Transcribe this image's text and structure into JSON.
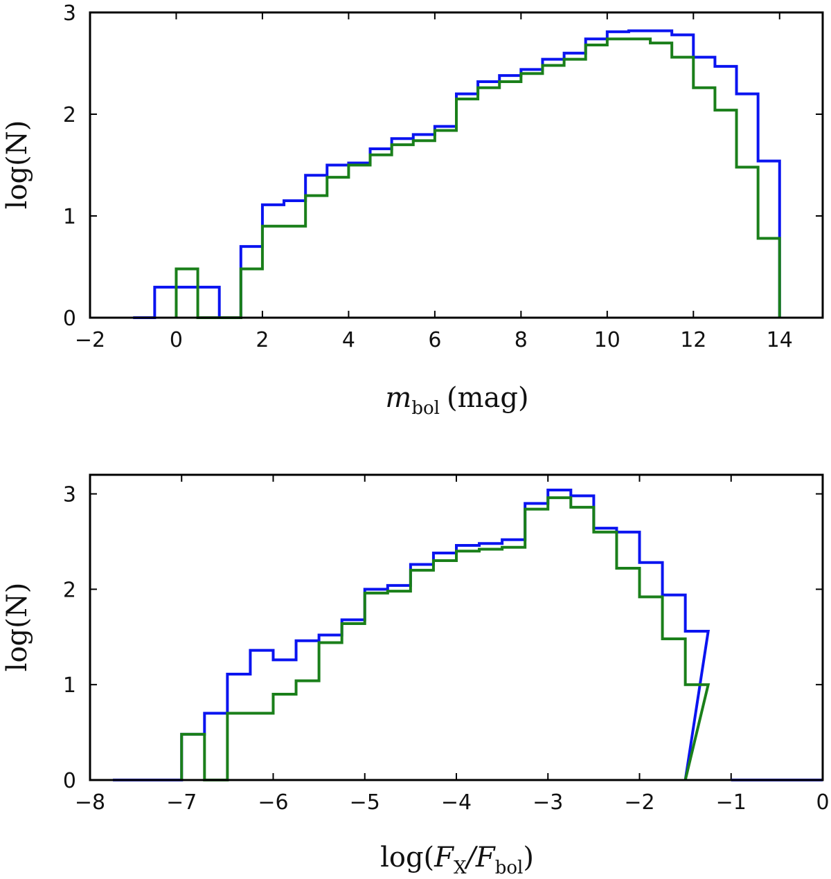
{
  "colors": {
    "series_a": "#0a14f0",
    "series_b": "#1a7f1a"
  },
  "chart_data": [
    {
      "type": "histogram",
      "xlabel": {
        "main": "m",
        "sub": "bol",
        "unit": "(mag)"
      },
      "ylabel": "log(N)",
      "xlim": [
        -2,
        15
      ],
      "ylim": [
        0,
        3
      ],
      "xticks": [
        -2,
        0,
        2,
        4,
        6,
        8,
        10,
        12,
        14
      ],
      "xtick_labels": [
        "−2",
        "0",
        "2",
        "4",
        "6",
        "8",
        "10",
        "12",
        "14"
      ],
      "yticks": [
        0,
        1,
        2,
        3
      ],
      "ytick_labels": [
        "0",
        "1",
        "2",
        "3"
      ],
      "bin_width": 0.5,
      "series": [
        {
          "name": "blue",
          "bins": [
            [
              -1.0,
              0.0
            ],
            [
              -0.5,
              0.3
            ],
            [
              0.0,
              0.3
            ],
            [
              0.5,
              0.3
            ],
            [
              1.0,
              0.0
            ],
            [
              1.5,
              0.7
            ],
            [
              2.0,
              1.11
            ],
            [
              2.5,
              1.15
            ],
            [
              3.0,
              1.4
            ],
            [
              3.5,
              1.5
            ],
            [
              4.0,
              1.52
            ],
            [
              4.5,
              1.66
            ],
            [
              5.0,
              1.76
            ],
            [
              5.5,
              1.8
            ],
            [
              6.0,
              1.88
            ],
            [
              6.5,
              2.2
            ],
            [
              7.0,
              2.32
            ],
            [
              7.5,
              2.38
            ],
            [
              8.0,
              2.44
            ],
            [
              8.5,
              2.54
            ],
            [
              9.0,
              2.6
            ],
            [
              9.5,
              2.74
            ],
            [
              10.0,
              2.81
            ],
            [
              10.5,
              2.82
            ],
            [
              11.0,
              2.82
            ],
            [
              11.5,
              2.78
            ],
            [
              12.0,
              2.56
            ],
            [
              12.5,
              2.47
            ],
            [
              13.0,
              2.2
            ],
            [
              13.5,
              1.54
            ]
          ],
          "end": 14.0
        },
        {
          "name": "green",
          "bins": [
            [
              0.0,
              0.48
            ],
            [
              0.5,
              0.0
            ],
            [
              1.0,
              0.0
            ],
            [
              1.5,
              0.48
            ],
            [
              2.0,
              0.9
            ],
            [
              2.5,
              0.9
            ],
            [
              3.0,
              1.2
            ],
            [
              3.5,
              1.38
            ],
            [
              4.0,
              1.5
            ],
            [
              4.5,
              1.6
            ],
            [
              5.0,
              1.7
            ],
            [
              5.5,
              1.74
            ],
            [
              6.0,
              1.84
            ],
            [
              6.5,
              2.15
            ],
            [
              7.0,
              2.26
            ],
            [
              7.5,
              2.32
            ],
            [
              8.0,
              2.4
            ],
            [
              8.5,
              2.48
            ],
            [
              9.0,
              2.54
            ],
            [
              9.5,
              2.68
            ],
            [
              10.0,
              2.74
            ],
            [
              10.5,
              2.74
            ],
            [
              11.0,
              2.7
            ],
            [
              11.5,
              2.56
            ],
            [
              12.0,
              2.26
            ],
            [
              12.5,
              2.04
            ],
            [
              13.0,
              1.48
            ],
            [
              13.5,
              0.78
            ]
          ],
          "end": 14.0
        }
      ]
    },
    {
      "type": "histogram",
      "xlabel": {
        "pre": "log(",
        "main": "F",
        "sub": "X",
        "mid": "/F",
        "sub2": "bol",
        "post": ")"
      },
      "ylabel": "log(N)",
      "xlim": [
        -8,
        0
      ],
      "ylim": [
        0,
        3.2
      ],
      "xticks": [
        -8,
        -7,
        -6,
        -5,
        -4,
        -3,
        -2,
        -1,
        0
      ],
      "xtick_labels": [
        "−8",
        "−7",
        "−6",
        "−5",
        "−4",
        "−3",
        "−2",
        "−1",
        "0"
      ],
      "yticks": [
        0,
        1,
        2,
        3
      ],
      "ytick_labels": [
        "0",
        "1",
        "2",
        "3"
      ],
      "bin_width": 0.25,
      "series": [
        {
          "name": "blue",
          "bins": [
            [
              -7.75,
              0.0
            ],
            [
              -7.5,
              0.0
            ],
            [
              -7.25,
              0.0
            ],
            [
              -7.0,
              0.48
            ],
            [
              -6.75,
              0.7
            ],
            [
              -6.5,
              1.11
            ],
            [
              -6.25,
              1.36
            ],
            [
              -6.0,
              1.26
            ],
            [
              -5.75,
              1.46
            ],
            [
              -5.5,
              1.52
            ],
            [
              -5.25,
              1.68
            ],
            [
              -5.0,
              2.0
            ],
            [
              -4.75,
              2.04
            ],
            [
              -4.5,
              2.26
            ],
            [
              -4.25,
              2.38
            ],
            [
              -4.0,
              2.46
            ],
            [
              -3.75,
              2.48
            ],
            [
              -3.5,
              2.52
            ],
            [
              -3.25,
              2.9
            ],
            [
              -3.0,
              3.04
            ],
            [
              -2.75,
              2.98
            ],
            [
              -2.5,
              2.64
            ],
            [
              -2.25,
              2.6
            ],
            [
              -2.0,
              2.28
            ],
            [
              -1.75,
              1.94
            ],
            [
              -1.5,
              1.56
            ]
          ],
          "end": -1.5,
          "tail": [
            [
              -1.0,
              0.0
            ],
            [
              0.0,
              0.0
            ]
          ]
        },
        {
          "name": "green",
          "bins": [
            [
              -7.0,
              0.48
            ],
            [
              -6.75,
              0.0
            ],
            [
              -6.5,
              0.7
            ],
            [
              -6.25,
              0.7
            ],
            [
              -6.0,
              0.9
            ],
            [
              -5.75,
              1.04
            ],
            [
              -5.5,
              1.44
            ],
            [
              -5.25,
              1.64
            ],
            [
              -5.0,
              1.96
            ],
            [
              -4.75,
              1.98
            ],
            [
              -4.5,
              2.2
            ],
            [
              -4.25,
              2.3
            ],
            [
              -4.0,
              2.4
            ],
            [
              -3.75,
              2.42
            ],
            [
              -3.5,
              2.44
            ],
            [
              -3.25,
              2.84
            ],
            [
              -3.0,
              2.96
            ],
            [
              -2.75,
              2.86
            ],
            [
              -2.5,
              2.6
            ],
            [
              -2.25,
              2.22
            ],
            [
              -2.0,
              1.92
            ],
            [
              -1.75,
              1.48
            ],
            [
              -1.5,
              1.0
            ]
          ],
          "end": -1.5
        }
      ]
    }
  ]
}
